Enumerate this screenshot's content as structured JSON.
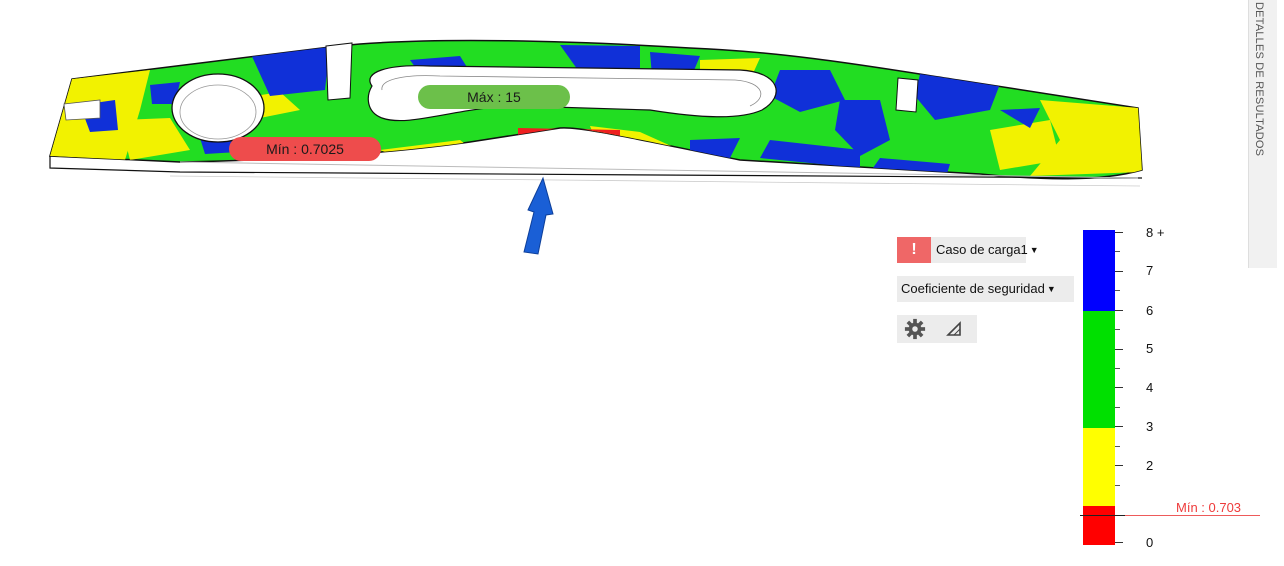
{
  "viewport": {
    "max_label": "Máx : 15",
    "min_label": "Mín : 0.7025"
  },
  "side_panel": {
    "label": "DETALLES DE RESULTADOS"
  },
  "controls": {
    "load_case": {
      "label": "Caso de carga1",
      "warning_symbol": "!"
    },
    "result_type": {
      "label": "Coeficiente de seguridad"
    },
    "settings_icon": "gear-icon",
    "probe_icon": "triangle-probe-icon"
  },
  "legend": {
    "tick_labels": [
      "8 +",
      "7",
      "6",
      "5",
      "4",
      "3",
      "2",
      "0"
    ],
    "min_marker": "Mín : 0.703",
    "bands": [
      {
        "from": 0,
        "to": 1,
        "color": "#ff0000"
      },
      {
        "from": 1,
        "to": 3,
        "color": "#ffff00"
      },
      {
        "from": 3,
        "to": 6,
        "color": "#00e000"
      },
      {
        "from": 6,
        "to": 8,
        "color": "#0000ff"
      }
    ]
  },
  "colors": {
    "blue": "#1030d8",
    "green": "#22dd22",
    "yellow": "#f2f200",
    "red": "#ee2020",
    "arrow": "#1a5fd6"
  }
}
